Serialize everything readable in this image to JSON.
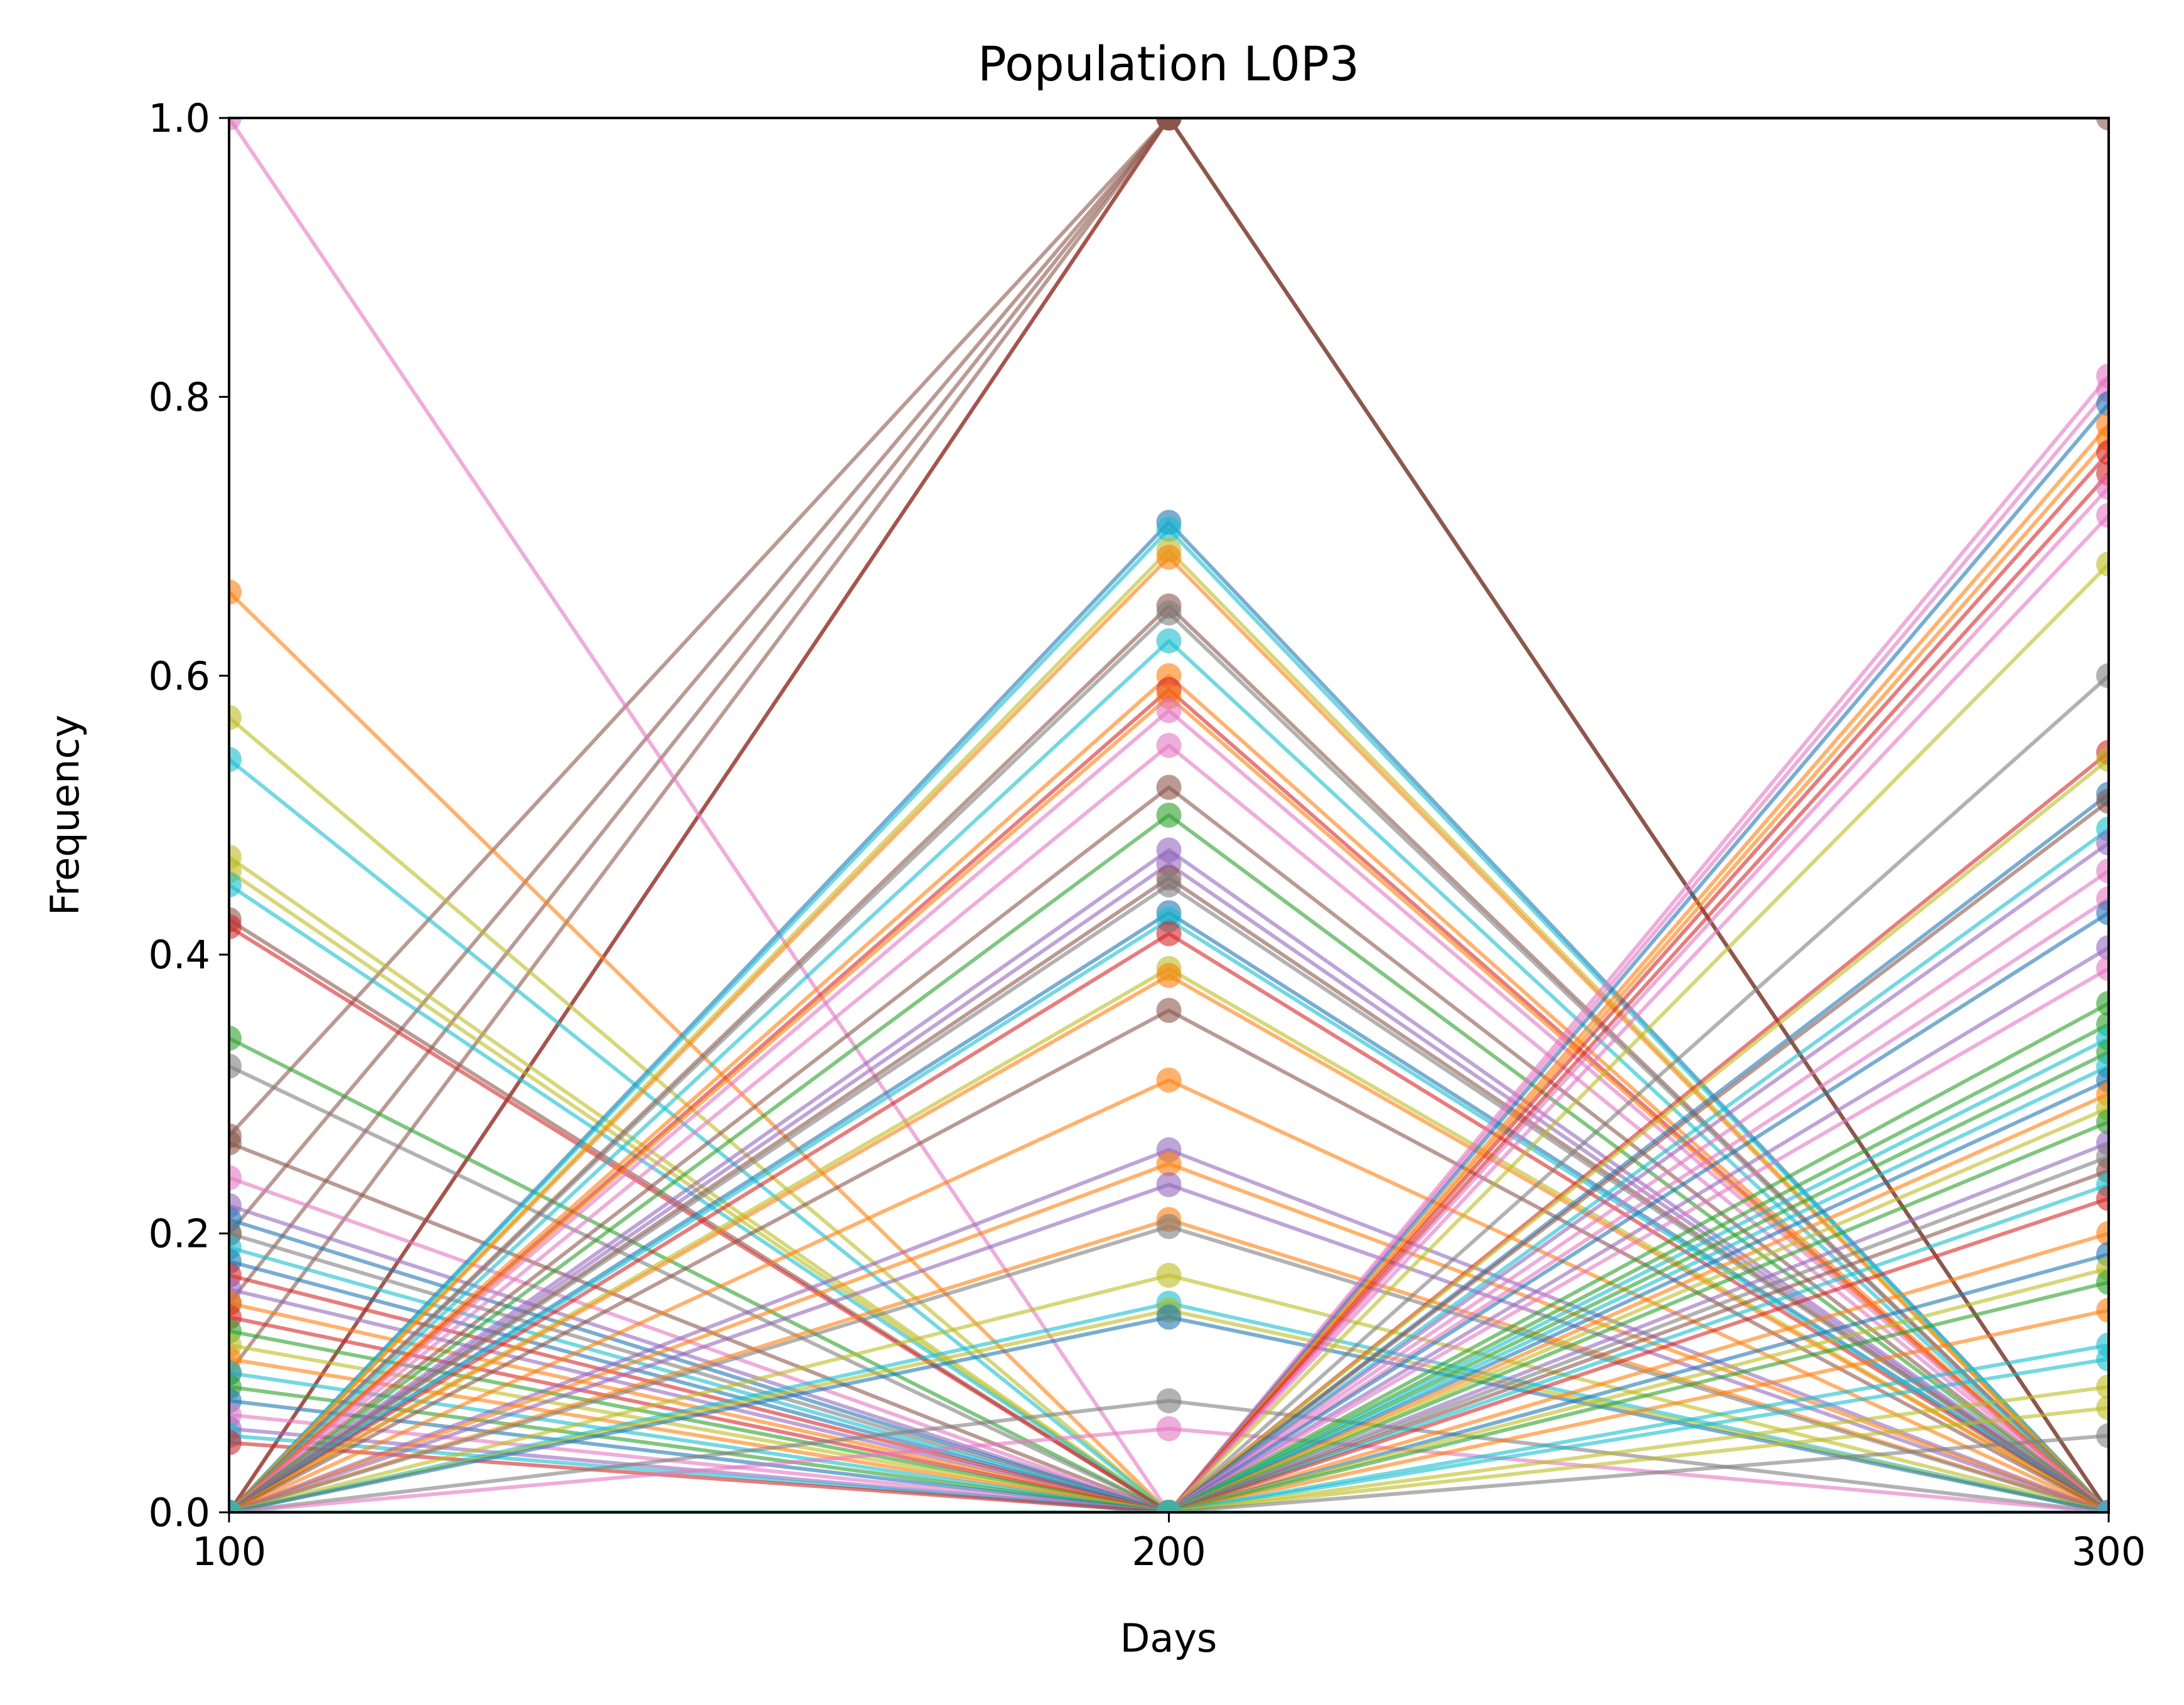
{
  "chart_data": {
    "type": "line",
    "title": "Population L0P3",
    "xlabel": "Days",
    "ylabel": "Frequency",
    "x": [
      100,
      200,
      300
    ],
    "xlim": [
      100,
      300
    ],
    "ylim": [
      0.0,
      1.0
    ],
    "x_ticks": [
      "100",
      "200",
      "300"
    ],
    "y_ticks": [
      "0.0",
      "0.2",
      "0.4",
      "0.6",
      "0.8",
      "1.0"
    ],
    "grid": false,
    "legend": "none",
    "marker": "circle",
    "palette": [
      "#1f77b4",
      "#ff7f0e",
      "#2ca02c",
      "#d62728",
      "#9467bd",
      "#8c564b",
      "#e377c2",
      "#7f7f7f",
      "#bcbd22",
      "#17becf"
    ],
    "series": [
      {
        "values": [
          0.0,
          1.0,
          1.0
        ],
        "color": "#8c564b"
      },
      {
        "values": [
          0.0,
          1.0,
          0.0
        ],
        "color": "#d62728"
      },
      {
        "values": [
          0.2,
          1.0,
          0.0
        ],
        "color": "#8c564b"
      },
      {
        "values": [
          0.15,
          1.0,
          0.0
        ],
        "color": "#8c564b"
      },
      {
        "values": [
          0.1,
          1.0,
          0.0
        ],
        "color": "#8c564b"
      },
      {
        "values": [
          0.27,
          1.0,
          0.0
        ],
        "color": "#8c564b"
      },
      {
        "values": [
          0.0,
          1.0,
          0.0
        ],
        "color": "#8c564b"
      },
      {
        "values": [
          1.0,
          0.0,
          0.0
        ],
        "color": "#e377c2"
      },
      {
        "values": [
          0.66,
          0.0,
          0.0
        ],
        "color": "#ff7f0e"
      },
      {
        "values": [
          0.57,
          0.0,
          0.0
        ],
        "color": "#bcbd22"
      },
      {
        "values": [
          0.54,
          0.0,
          0.0
        ],
        "color": "#17becf"
      },
      {
        "values": [
          0.47,
          0.0,
          0.0
        ],
        "color": "#bcbd22"
      },
      {
        "values": [
          0.46,
          0.0,
          0.0
        ],
        "color": "#bcbd22"
      },
      {
        "values": [
          0.45,
          0.0,
          0.0
        ],
        "color": "#17becf"
      },
      {
        "values": [
          0.425,
          0.0,
          0.0
        ],
        "color": "#8c564b"
      },
      {
        "values": [
          0.42,
          0.0,
          0.0
        ],
        "color": "#d62728"
      },
      {
        "values": [
          0.34,
          0.0,
          0.0
        ],
        "color": "#2ca02c"
      },
      {
        "values": [
          0.32,
          0.0,
          0.0
        ],
        "color": "#7f7f7f"
      },
      {
        "values": [
          0.265,
          0.0,
          0.0
        ],
        "color": "#8c564b"
      },
      {
        "values": [
          0.24,
          0.0,
          0.0
        ],
        "color": "#e377c2"
      },
      {
        "values": [
          0.22,
          0.0,
          0.0
        ],
        "color": "#9467bd"
      },
      {
        "values": [
          0.21,
          0.0,
          0.0
        ],
        "color": "#1f77b4"
      },
      {
        "values": [
          0.2,
          0.0,
          0.0
        ],
        "color": "#7f7f7f"
      },
      {
        "values": [
          0.19,
          0.0,
          0.0
        ],
        "color": "#17becf"
      },
      {
        "values": [
          0.18,
          0.0,
          0.0
        ],
        "color": "#1f77b4"
      },
      {
        "values": [
          0.17,
          0.0,
          0.0
        ],
        "color": "#d62728"
      },
      {
        "values": [
          0.16,
          0.0,
          0.0
        ],
        "color": "#9467bd"
      },
      {
        "values": [
          0.15,
          0.0,
          0.0
        ],
        "color": "#ff7f0e"
      },
      {
        "values": [
          0.14,
          0.0,
          0.0
        ],
        "color": "#d62728"
      },
      {
        "values": [
          0.13,
          0.0,
          0.0
        ],
        "color": "#2ca02c"
      },
      {
        "values": [
          0.12,
          0.0,
          0.0
        ],
        "color": "#bcbd22"
      },
      {
        "values": [
          0.11,
          0.0,
          0.0
        ],
        "color": "#ff7f0e"
      },
      {
        "values": [
          0.1,
          0.0,
          0.0
        ],
        "color": "#17becf"
      },
      {
        "values": [
          0.09,
          0.0,
          0.0
        ],
        "color": "#2ca02c"
      },
      {
        "values": [
          0.08,
          0.0,
          0.0
        ],
        "color": "#1f77b4"
      },
      {
        "values": [
          0.07,
          0.0,
          0.0
        ],
        "color": "#e377c2"
      },
      {
        "values": [
          0.06,
          0.0,
          0.0
        ],
        "color": "#9467bd"
      },
      {
        "values": [
          0.055,
          0.0,
          0.0
        ],
        "color": "#17becf"
      },
      {
        "values": [
          0.05,
          0.0,
          0.0
        ],
        "color": "#d62728"
      },
      {
        "values": [
          0.0,
          0.71,
          0.0
        ],
        "color": "#1f77b4"
      },
      {
        "values": [
          0.0,
          0.705,
          0.0
        ],
        "color": "#17becf"
      },
      {
        "values": [
          0.0,
          0.69,
          0.0
        ],
        "color": "#bcbd22"
      },
      {
        "values": [
          0.0,
          0.685,
          0.0
        ],
        "color": "#ff7f0e"
      },
      {
        "values": [
          0.0,
          0.65,
          0.0
        ],
        "color": "#8c564b"
      },
      {
        "values": [
          0.0,
          0.645,
          0.0
        ],
        "color": "#7f7f7f"
      },
      {
        "values": [
          0.0,
          0.625,
          0.0
        ],
        "color": "#17becf"
      },
      {
        "values": [
          0.0,
          0.6,
          0.0
        ],
        "color": "#ff7f0e"
      },
      {
        "values": [
          0.0,
          0.59,
          0.0
        ],
        "color": "#d62728"
      },
      {
        "values": [
          0.0,
          0.585,
          0.0
        ],
        "color": "#ff7f0e"
      },
      {
        "values": [
          0.0,
          0.575,
          0.0
        ],
        "color": "#e377c2"
      },
      {
        "values": [
          0.0,
          0.55,
          0.0
        ],
        "color": "#e377c2"
      },
      {
        "values": [
          0.0,
          0.52,
          0.0
        ],
        "color": "#8c564b"
      },
      {
        "values": [
          0.0,
          0.5,
          0.0
        ],
        "color": "#2ca02c"
      },
      {
        "values": [
          0.0,
          0.475,
          0.0
        ],
        "color": "#9467bd"
      },
      {
        "values": [
          0.0,
          0.465,
          0.0
        ],
        "color": "#9467bd"
      },
      {
        "values": [
          0.0,
          0.455,
          0.0
        ],
        "color": "#8c564b"
      },
      {
        "values": [
          0.0,
          0.45,
          0.0
        ],
        "color": "#7f7f7f"
      },
      {
        "values": [
          0.0,
          0.43,
          0.0
        ],
        "color": "#1f77b4"
      },
      {
        "values": [
          0.0,
          0.425,
          0.0
        ],
        "color": "#17becf"
      },
      {
        "values": [
          0.0,
          0.415,
          0.0
        ],
        "color": "#d62728"
      },
      {
        "values": [
          0.0,
          0.39,
          0.0
        ],
        "color": "#bcbd22"
      },
      {
        "values": [
          0.0,
          0.385,
          0.0
        ],
        "color": "#ff7f0e"
      },
      {
        "values": [
          0.0,
          0.36,
          0.0
        ],
        "color": "#8c564b"
      },
      {
        "values": [
          0.0,
          0.31,
          0.0
        ],
        "color": "#ff7f0e"
      },
      {
        "values": [
          0.0,
          0.26,
          0.0
        ],
        "color": "#9467bd"
      },
      {
        "values": [
          0.0,
          0.25,
          0.0
        ],
        "color": "#ff7f0e"
      },
      {
        "values": [
          0.0,
          0.235,
          0.0
        ],
        "color": "#9467bd"
      },
      {
        "values": [
          0.0,
          0.21,
          0.0
        ],
        "color": "#ff7f0e"
      },
      {
        "values": [
          0.0,
          0.205,
          0.0
        ],
        "color": "#7f7f7f"
      },
      {
        "values": [
          0.0,
          0.17,
          0.0
        ],
        "color": "#bcbd22"
      },
      {
        "values": [
          0.0,
          0.15,
          0.0
        ],
        "color": "#17becf"
      },
      {
        "values": [
          0.0,
          0.145,
          0.0
        ],
        "color": "#bcbd22"
      },
      {
        "values": [
          0.0,
          0.14,
          0.0
        ],
        "color": "#1f77b4"
      },
      {
        "values": [
          0.0,
          0.08,
          0.0
        ],
        "color": "#7f7f7f"
      },
      {
        "values": [
          0.0,
          0.06,
          0.0
        ],
        "color": "#e377c2"
      },
      {
        "values": [
          0.0,
          0.0,
          0.815
        ],
        "color": "#e377c2"
      },
      {
        "values": [
          0.0,
          0.0,
          0.805
        ],
        "color": "#e377c2"
      },
      {
        "values": [
          0.0,
          0.0,
          0.795
        ],
        "color": "#1f77b4"
      },
      {
        "values": [
          0.0,
          0.0,
          0.78
        ],
        "color": "#ff7f0e"
      },
      {
        "values": [
          0.0,
          0.0,
          0.77
        ],
        "color": "#ff7f0e"
      },
      {
        "values": [
          0.0,
          0.0,
          0.76
        ],
        "color": "#d62728"
      },
      {
        "values": [
          0.0,
          0.0,
          0.745
        ],
        "color": "#d62728"
      },
      {
        "values": [
          0.0,
          0.0,
          0.735
        ],
        "color": "#e377c2"
      },
      {
        "values": [
          0.0,
          0.0,
          0.715
        ],
        "color": "#e377c2"
      },
      {
        "values": [
          0.0,
          0.0,
          0.68
        ],
        "color": "#bcbd22"
      },
      {
        "values": [
          0.0,
          0.0,
          0.6
        ],
        "color": "#7f7f7f"
      },
      {
        "values": [
          0.0,
          0.0,
          0.545
        ],
        "color": "#d62728"
      },
      {
        "values": [
          0.0,
          0.0,
          0.54
        ],
        "color": "#bcbd22"
      },
      {
        "values": [
          0.0,
          0.0,
          0.515
        ],
        "color": "#1f77b4"
      },
      {
        "values": [
          0.0,
          0.0,
          0.51
        ],
        "color": "#8c564b"
      },
      {
        "values": [
          0.0,
          0.0,
          0.49
        ],
        "color": "#17becf"
      },
      {
        "values": [
          0.0,
          0.0,
          0.48
        ],
        "color": "#9467bd"
      },
      {
        "values": [
          0.0,
          0.0,
          0.46
        ],
        "color": "#e377c2"
      },
      {
        "values": [
          0.0,
          0.0,
          0.44
        ],
        "color": "#e377c2"
      },
      {
        "values": [
          0.0,
          0.0,
          0.43
        ],
        "color": "#1f77b4"
      },
      {
        "values": [
          0.0,
          0.0,
          0.405
        ],
        "color": "#9467bd"
      },
      {
        "values": [
          0.0,
          0.0,
          0.39
        ],
        "color": "#e377c2"
      },
      {
        "values": [
          0.0,
          0.0,
          0.365
        ],
        "color": "#2ca02c"
      },
      {
        "values": [
          0.0,
          0.0,
          0.35
        ],
        "color": "#2ca02c"
      },
      {
        "values": [
          0.0,
          0.0,
          0.34
        ],
        "color": "#17becf"
      },
      {
        "values": [
          0.0,
          0.0,
          0.33
        ],
        "color": "#2ca02c"
      },
      {
        "values": [
          0.0,
          0.0,
          0.32
        ],
        "color": "#17becf"
      },
      {
        "values": [
          0.0,
          0.0,
          0.31
        ],
        "color": "#1f77b4"
      },
      {
        "values": [
          0.0,
          0.0,
          0.3
        ],
        "color": "#ff7f0e"
      },
      {
        "values": [
          0.0,
          0.0,
          0.29
        ],
        "color": "#bcbd22"
      },
      {
        "values": [
          0.0,
          0.0,
          0.28
        ],
        "color": "#2ca02c"
      },
      {
        "values": [
          0.0,
          0.0,
          0.265
        ],
        "color": "#9467bd"
      },
      {
        "values": [
          0.0,
          0.0,
          0.255
        ],
        "color": "#7f7f7f"
      },
      {
        "values": [
          0.0,
          0.0,
          0.245
        ],
        "color": "#8c564b"
      },
      {
        "values": [
          0.0,
          0.0,
          0.235
        ],
        "color": "#17becf"
      },
      {
        "values": [
          0.0,
          0.0,
          0.225
        ],
        "color": "#d62728"
      },
      {
        "values": [
          0.0,
          0.0,
          0.2
        ],
        "color": "#ff7f0e"
      },
      {
        "values": [
          0.0,
          0.0,
          0.185
        ],
        "color": "#1f77b4"
      },
      {
        "values": [
          0.0,
          0.0,
          0.175
        ],
        "color": "#bcbd22"
      },
      {
        "values": [
          0.0,
          0.0,
          0.165
        ],
        "color": "#2ca02c"
      },
      {
        "values": [
          0.0,
          0.0,
          0.145
        ],
        "color": "#ff7f0e"
      },
      {
        "values": [
          0.0,
          0.0,
          0.12
        ],
        "color": "#17becf"
      },
      {
        "values": [
          0.0,
          0.0,
          0.11
        ],
        "color": "#17becf"
      },
      {
        "values": [
          0.0,
          0.0,
          0.09
        ],
        "color": "#bcbd22"
      },
      {
        "values": [
          0.0,
          0.0,
          0.075
        ],
        "color": "#bcbd22"
      },
      {
        "values": [
          0.0,
          0.0,
          0.055
        ],
        "color": "#7f7f7f"
      },
      {
        "values": [
          0.0,
          0.0,
          0.0
        ],
        "color": "#17becf"
      }
    ]
  }
}
